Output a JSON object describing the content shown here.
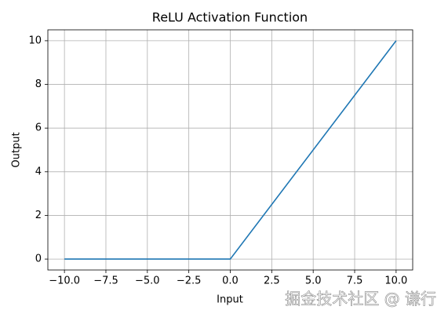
{
  "chart_data": {
    "type": "line",
    "title": "ReLU Activation Function",
    "x_label": "Input",
    "y_label": "Output",
    "x": [
      -10,
      0,
      10
    ],
    "series": [
      {
        "name": "ReLU",
        "color": "#1f77b4",
        "values": [
          0,
          0,
          10
        ]
      }
    ],
    "xlim": [
      -11,
      11
    ],
    "ylim": [
      -0.5,
      10.5
    ],
    "xticks": [
      {
        "value": -10,
        "label": "−10.0"
      },
      {
        "value": -7.5,
        "label": "−7.5"
      },
      {
        "value": -5,
        "label": "−5.0"
      },
      {
        "value": -2.5,
        "label": "−2.5"
      },
      {
        "value": 0,
        "label": "0.0"
      },
      {
        "value": 2.5,
        "label": "2.5"
      },
      {
        "value": 5,
        "label": "5.0"
      },
      {
        "value": 7.5,
        "label": "7.5"
      },
      {
        "value": 10,
        "label": "10.0"
      }
    ],
    "yticks": [
      0,
      2,
      4,
      6,
      8,
      10
    ],
    "grid": true,
    "watermark": "掘金技术社区 @ 谦行"
  }
}
